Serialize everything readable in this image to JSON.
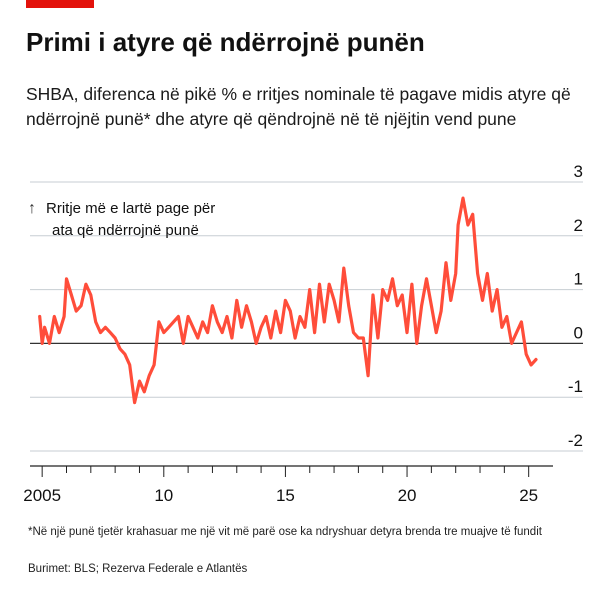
{
  "accent_color": "#e3120b",
  "line_color": "#ff4d3a",
  "title": "Primi i atyre që ndërrojnë punën",
  "subtitle": "SHBA, diferenca në pikë % e rritjes nominale të pagave midis atyre që ndërrojnë punë* dhe atyre që qëndrojnë në të njëjtin vend pune",
  "annotation": {
    "arrow": "↑",
    "line1": "Rritje më e lartë page për",
    "line2": "ata që ndërrojnë punë"
  },
  "footnote": "*Në një punë tjetër krahasuar me një vit më parë ose ka ndryshuar detyra brenda tre muajve të fundit",
  "source": "Burimet: BLS; Rezerva Federale e Atlantës",
  "chart_data": {
    "type": "line",
    "title": "Primi i atyre që ndërrojnë punën",
    "xlabel": "",
    "ylabel": "",
    "xlim": [
      2004.5,
      2026.0
    ],
    "ylim": [
      -2,
      3
    ],
    "y_ticks": [
      3,
      2,
      1,
      0,
      -1,
      -2
    ],
    "y_tick_labels": [
      "3",
      "2",
      "1",
      "0",
      "-1",
      "-2"
    ],
    "x_major_ticks": [
      2005,
      2010,
      2015,
      2020,
      2025
    ],
    "x_tick_labels": [
      "2005",
      "10",
      "15",
      "20",
      "25"
    ],
    "grid": true,
    "series": [
      {
        "name": "",
        "x": [
          2004.9,
          2005.0,
          2005.1,
          2005.3,
          2005.5,
          2005.7,
          2005.9,
          2006.0,
          2006.2,
          2006.4,
          2006.6,
          2006.8,
          2007.0,
          2007.2,
          2007.4,
          2007.6,
          2007.8,
          2008.0,
          2008.2,
          2008.4,
          2008.6,
          2008.8,
          2009.0,
          2009.2,
          2009.4,
          2009.6,
          2009.8,
          2010.0,
          2010.2,
          2010.4,
          2010.6,
          2010.8,
          2011.0,
          2011.2,
          2011.4,
          2011.6,
          2011.8,
          2012.0,
          2012.2,
          2012.4,
          2012.6,
          2012.8,
          2013.0,
          2013.2,
          2013.4,
          2013.6,
          2013.8,
          2014.0,
          2014.2,
          2014.4,
          2014.6,
          2014.8,
          2015.0,
          2015.2,
          2015.4,
          2015.6,
          2015.8,
          2016.0,
          2016.2,
          2016.4,
          2016.6,
          2016.8,
          2017.0,
          2017.2,
          2017.4,
          2017.6,
          2017.8,
          2018.0,
          2018.2,
          2018.4,
          2018.6,
          2018.8,
          2019.0,
          2019.2,
          2019.4,
          2019.6,
          2019.8,
          2020.0,
          2020.2,
          2020.4,
          2020.6,
          2020.8,
          2021.0,
          2021.2,
          2021.4,
          2021.6,
          2021.8,
          2022.0,
          2022.1,
          2022.3,
          2022.5,
          2022.7,
          2022.9,
          2023.1,
          2023.3,
          2023.5,
          2023.7,
          2023.9,
          2024.1,
          2024.3,
          2024.5,
          2024.7,
          2024.9,
          2025.1,
          2025.3
        ],
        "values": [
          0.5,
          0.0,
          0.3,
          0.0,
          0.5,
          0.2,
          0.5,
          1.2,
          0.9,
          0.6,
          0.7,
          1.1,
          0.9,
          0.4,
          0.2,
          0.3,
          0.2,
          0.1,
          -0.1,
          -0.2,
          -0.4,
          -1.1,
          -0.7,
          -0.9,
          -0.6,
          -0.4,
          0.4,
          0.2,
          0.3,
          0.4,
          0.5,
          0.0,
          0.5,
          0.3,
          0.1,
          0.4,
          0.2,
          0.7,
          0.4,
          0.2,
          0.5,
          0.1,
          0.8,
          0.3,
          0.7,
          0.4,
          0.0,
          0.3,
          0.5,
          0.1,
          0.6,
          0.2,
          0.8,
          0.6,
          0.1,
          0.5,
          0.3,
          1.0,
          0.2,
          1.1,
          0.4,
          1.1,
          0.8,
          0.4,
          1.4,
          0.7,
          0.2,
          0.1,
          0.1,
          -0.6,
          0.9,
          0.1,
          1.0,
          0.8,
          1.2,
          0.7,
          0.9,
          0.2,
          1.1,
          0.0,
          0.7,
          1.2,
          0.7,
          0.2,
          0.6,
          1.5,
          0.8,
          1.3,
          2.2,
          2.7,
          2.2,
          2.4,
          1.3,
          0.8,
          1.3,
          0.6,
          1.0,
          0.3,
          0.5,
          0.0,
          0.2,
          0.4,
          -0.2,
          -0.4,
          -0.3
        ]
      }
    ]
  }
}
